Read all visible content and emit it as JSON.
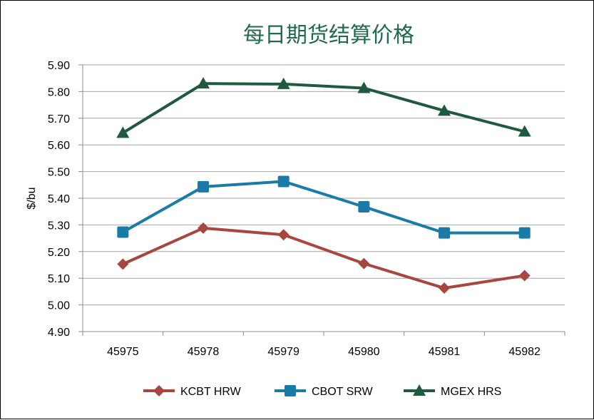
{
  "chart_data": {
    "type": "line",
    "title": "每日期货结算价格",
    "xlabel": "",
    "ylabel": "$/bu",
    "categories": [
      "45975",
      "45978",
      "45979",
      "45980",
      "45981",
      "45982"
    ],
    "ylim": [
      4.9,
      5.9
    ],
    "yticks": [
      "5.90",
      "5.80",
      "5.70",
      "5.60",
      "5.50",
      "5.40",
      "5.30",
      "5.20",
      "5.10",
      "5.00",
      "4.90"
    ],
    "grid": true,
    "legend_position": "bottom",
    "series": [
      {
        "name": "KCBT HRW",
        "color": "#a84640",
        "marker": "diamond",
        "values": [
          5.153,
          5.288,
          5.263,
          5.155,
          5.063,
          5.11
        ]
      },
      {
        "name": "CBOT SRW",
        "color": "#1a7aa8",
        "marker": "square",
        "values": [
          5.273,
          5.443,
          5.463,
          5.368,
          5.27,
          5.27
        ]
      },
      {
        "name": "MGEX HRS",
        "color": "#1f5a3e",
        "marker": "triangle",
        "values": [
          5.645,
          5.83,
          5.828,
          5.813,
          5.728,
          5.65
        ]
      }
    ]
  }
}
